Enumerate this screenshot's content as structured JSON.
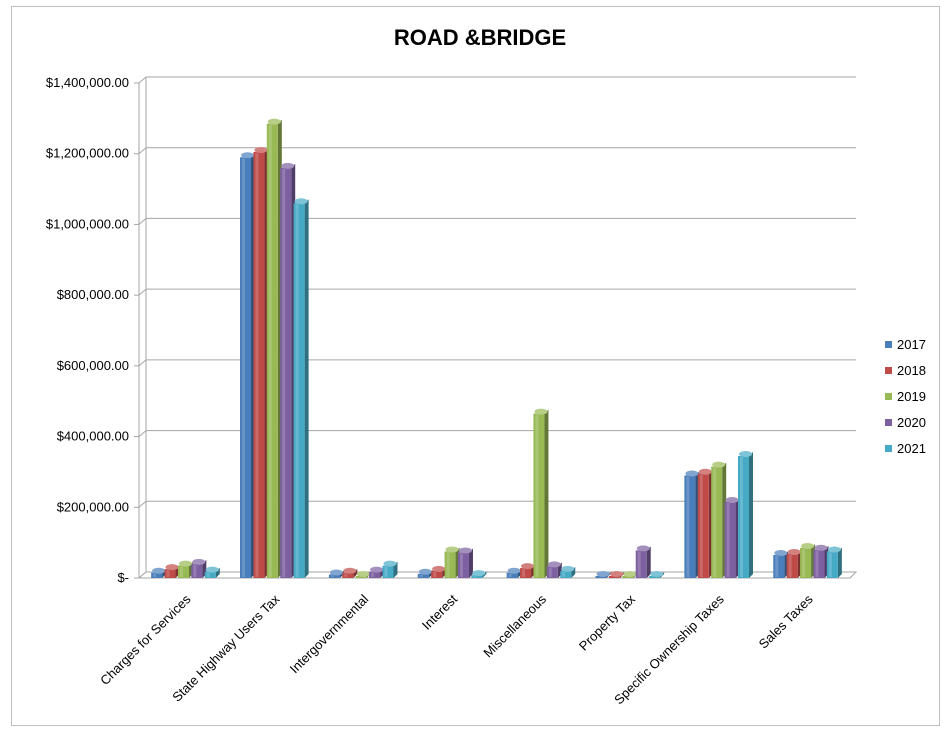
{
  "chart_data": {
    "type": "bar",
    "title": "ROAD &BRIDGE",
    "xlabel": "",
    "ylabel": "",
    "ylim": [
      0,
      1400000
    ],
    "yticks": [
      {
        "value": 0,
        "label": "$-"
      },
      {
        "value": 200000,
        "label": "$200,000.00"
      },
      {
        "value": 400000,
        "label": "$400,000.00"
      },
      {
        "value": 600000,
        "label": "$600,000.00"
      },
      {
        "value": 800000,
        "label": "$800,000.00"
      },
      {
        "value": 1000000,
        "label": "$1,000,000.00"
      },
      {
        "value": 1200000,
        "label": "$1,200,000.00"
      },
      {
        "value": 1400000,
        "label": "$1,400,000.00"
      }
    ],
    "grid": true,
    "legend_position": "right",
    "categories": [
      "Charges for Services",
      "State Highway Users Tax",
      "Intergovernmental",
      "Interest",
      "Miscellaneous",
      "Property Tax",
      "Specific Ownership Taxes",
      "Sales Taxes"
    ],
    "series": [
      {
        "name": "2017",
        "color": "#4a7ebb",
        "values": [
          15000,
          1190000,
          10000,
          12000,
          15000,
          2000,
          290000,
          65000
        ]
      },
      {
        "name": "2018",
        "color": "#be4b48",
        "values": [
          25000,
          1205000,
          15000,
          20000,
          28000,
          3000,
          295000,
          68000
        ]
      },
      {
        "name": "2019",
        "color": "#98b954",
        "values": [
          35000,
          1285000,
          3000,
          75000,
          465000,
          3000,
          315000,
          85000
        ]
      },
      {
        "name": "2020",
        "color": "#7d60a0",
        "values": [
          40000,
          1160000,
          18000,
          72000,
          33000,
          78000,
          215000,
          80000
        ]
      },
      {
        "name": "2021",
        "color": "#46aac5",
        "values": [
          18000,
          1060000,
          35000,
          8000,
          20000,
          3000,
          345000,
          75000
        ]
      }
    ]
  }
}
